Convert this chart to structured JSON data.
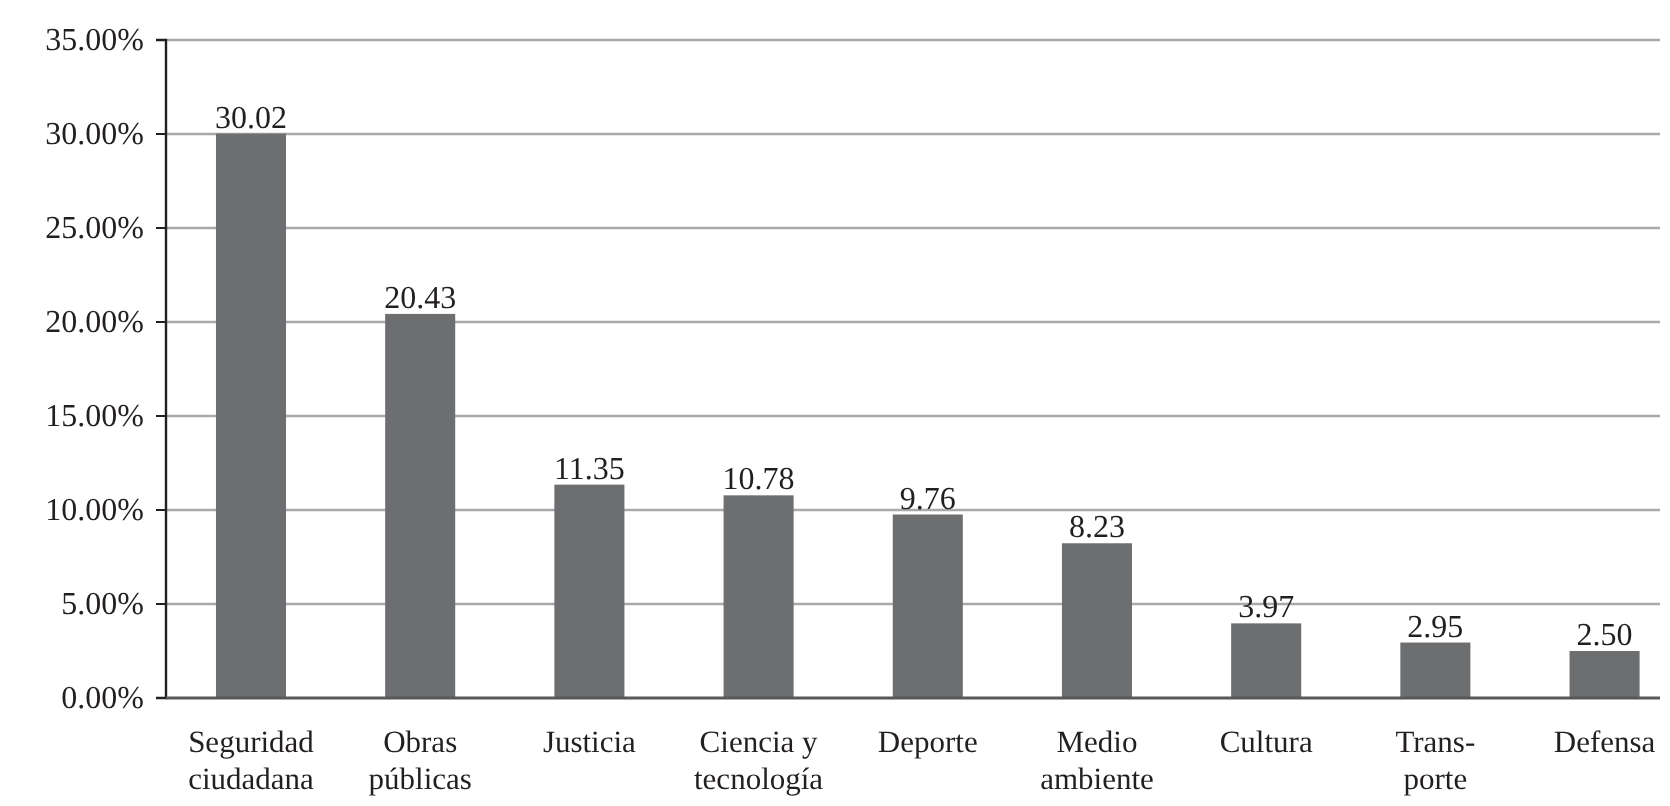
{
  "chart_data": {
    "type": "bar",
    "categories": [
      "Seguridad\nciudadana",
      "Obras\npúblicas",
      "Justicia",
      "Ciencia y\ntecnología",
      "Deporte",
      "Medio\nambiente",
      "Cultura",
      "Trans-\nporte",
      "Defensa"
    ],
    "values": [
      30.02,
      20.43,
      11.35,
      10.78,
      9.76,
      8.23,
      3.97,
      2.95,
      2.5
    ],
    "value_labels": [
      "30.02",
      "20.43",
      "11.35",
      "10.78",
      "9.76",
      "8.23",
      "3.97",
      "2.95",
      "2.50"
    ],
    "color": "#6d6e70",
    "ylim": [
      0,
      35
    ],
    "yticks": [
      {
        "value": 0,
        "label": "0.00%"
      },
      {
        "value": 5,
        "label": "5.00%"
      },
      {
        "value": 10,
        "label": "10.00%"
      },
      {
        "value": 15,
        "label": "15.00%"
      },
      {
        "value": 20,
        "label": "20.00%"
      },
      {
        "value": 25,
        "label": "25.00%"
      },
      {
        "value": 30,
        "label": "30.00%"
      },
      {
        "value": 35,
        "label": "35.00%"
      }
    ],
    "grid": "y"
  }
}
